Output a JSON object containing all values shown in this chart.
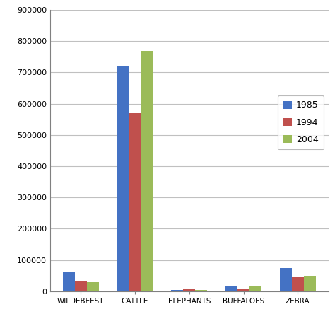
{
  "categories": [
    "WILDEBEEST",
    "CATTLE",
    "ELEPHANTS",
    "BUFFALOES",
    "ZEBRA"
  ],
  "series": {
    "1985": [
      62000,
      718000,
      5000,
      18000,
      75000
    ],
    "1994": [
      32000,
      570000,
      7000,
      9000,
      48000
    ],
    "2004": [
      28000,
      770000,
      5000,
      18000,
      50000
    ]
  },
  "colors": {
    "1985": "#4472C4",
    "1994": "#C0504D",
    "2004": "#9BBB59"
  },
  "ylim": [
    0,
    900000
  ],
  "yticks": [
    0,
    100000,
    200000,
    300000,
    400000,
    500000,
    600000,
    700000,
    800000,
    900000
  ],
  "legend_labels": [
    "1985",
    "1994",
    "2004"
  ],
  "background_color": "#FFFFFF",
  "plot_bg_color": "#FFFFFF",
  "bar_width": 0.22,
  "grid_color": "#C0C0C0"
}
